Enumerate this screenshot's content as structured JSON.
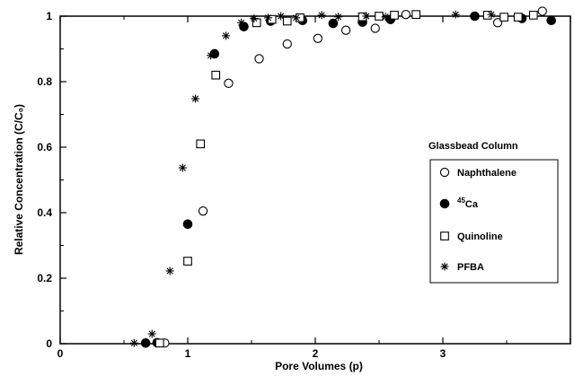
{
  "chart_data": {
    "type": "scatter",
    "xlabel": "Pore Volumes (p)",
    "ylabel": "Relative Concentration (C/C₀)",
    "xlim": [
      0,
      4
    ],
    "ylim": [
      0,
      1
    ],
    "x_ticks": [
      0,
      1,
      2,
      3,
      4
    ],
    "x_tick_labels": [
      "0",
      "1",
      "2",
      "3",
      ""
    ],
    "y_ticks": [
      0,
      0.2,
      0.4,
      0.6,
      0.8,
      1
    ],
    "y_tick_labels": [
      "0",
      "0.2",
      "0.4",
      "0.6",
      "0.8",
      "1"
    ],
    "legend_title": "Glassbead Column",
    "legend_placement": "right",
    "grid": false,
    "series": [
      {
        "name": "Naphthalene",
        "marker": "open-circle",
        "points": [
          [
            0.82,
            0.002
          ],
          [
            1.12,
            0.405
          ],
          [
            1.32,
            0.795
          ],
          [
            1.56,
            0.87
          ],
          [
            1.78,
            0.915
          ],
          [
            2.02,
            0.932
          ],
          [
            2.24,
            0.957
          ],
          [
            2.47,
            0.963
          ],
          [
            2.71,
            1.005
          ],
          [
            3.43,
            0.98
          ],
          [
            3.78,
            1.015
          ]
        ]
      },
      {
        "name": "45Ca",
        "name_superscript": "45",
        "name_base": "Ca",
        "marker": "filled-circle",
        "points": [
          [
            0.76,
            0.003
          ],
          [
            0.67,
            0.002
          ],
          [
            1.0,
            0.365
          ],
          [
            1.21,
            0.885
          ],
          [
            1.44,
            0.968
          ],
          [
            1.65,
            0.985
          ],
          [
            1.9,
            0.987
          ],
          [
            2.14,
            0.978
          ],
          [
            2.37,
            0.982
          ],
          [
            2.59,
            0.99
          ],
          [
            3.25,
            1.0
          ],
          [
            3.62,
            0.993
          ],
          [
            3.85,
            0.987
          ]
        ]
      },
      {
        "name": "Quinoline",
        "marker": "open-square",
        "points": [
          [
            0.78,
            0.002
          ],
          [
            1.0,
            0.252
          ],
          [
            1.1,
            0.61
          ],
          [
            1.22,
            0.82
          ],
          [
            1.54,
            0.98
          ],
          [
            1.66,
            0.99
          ],
          [
            1.78,
            0.985
          ],
          [
            1.88,
            0.995
          ],
          [
            2.37,
            0.998
          ],
          [
            2.5,
            1.0
          ],
          [
            2.62,
            1.003
          ],
          [
            2.79,
            1.005
          ],
          [
            3.35,
            1.003
          ],
          [
            3.48,
            0.997
          ],
          [
            3.59,
            0.997
          ],
          [
            3.71,
            1.003
          ]
        ]
      },
      {
        "name": "PFBA",
        "marker": "asterisk",
        "points": [
          [
            0.58,
            0.002
          ],
          [
            0.72,
            0.03
          ],
          [
            0.86,
            0.222
          ],
          [
            0.96,
            0.537
          ],
          [
            1.06,
            0.748
          ],
          [
            1.18,
            0.88
          ],
          [
            1.3,
            0.94
          ],
          [
            1.42,
            0.98
          ],
          [
            1.52,
            0.993
          ],
          [
            1.63,
            0.995
          ],
          [
            1.73,
            1.0
          ],
          [
            1.85,
            0.995
          ],
          [
            2.05,
            1.003
          ],
          [
            2.18,
            0.998
          ],
          [
            2.4,
            1.0
          ],
          [
            2.55,
            0.998
          ],
          [
            3.1,
            1.005
          ],
          [
            3.38,
            1.005
          ]
        ]
      }
    ]
  }
}
